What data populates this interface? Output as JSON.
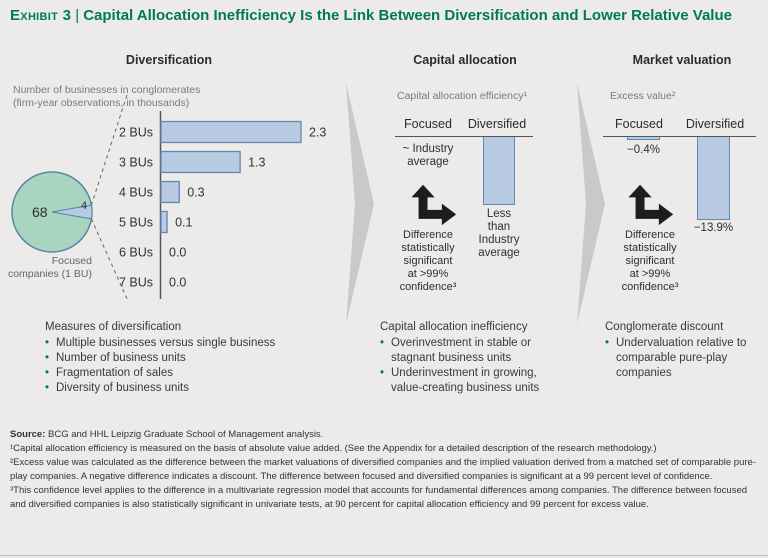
{
  "header": {
    "eyebrow": "Exhibit 3",
    "separator": "|",
    "title": "Capital Allocation Inefficiency Is the Link Between Diversification and Lower Relative Value"
  },
  "chart_data": [
    {
      "id": "diversification-bars",
      "type": "bar",
      "orientation": "horizontal",
      "title": "Diversification",
      "subtitle": "Number of businesses in conglomerates\n(firm-year observations, in thousands)",
      "categories": [
        "2 BUs",
        "3 BUs",
        "4 BUs",
        "5 BUs",
        "6 BUs",
        "7 BUs"
      ],
      "values": [
        2.3,
        1.3,
        0.3,
        0.1,
        0.0,
        0.0
      ],
      "xlim": [
        0,
        2.3
      ],
      "grid": false,
      "pie": {
        "values": [
          68,
          4
        ],
        "shown_numbers": [
          "68",
          "4"
        ],
        "caption": "Focused\ncompanies (1 BU)"
      }
    },
    {
      "id": "capital-allocation-efficiency",
      "type": "bar",
      "title": "Capital allocation",
      "subtitle": "Capital allocation efficiency¹",
      "categories": [
        "Focused",
        "Diversified"
      ],
      "values": [
        null,
        null
      ],
      "value_notes": [
        "~ Industry\naverage",
        "Less\nthan\nIndustry\naverage"
      ],
      "annotation": "Difference\nstatistically\nsignificant\nat >99%\nconfidence³"
    },
    {
      "id": "excess-value",
      "type": "bar",
      "title": "Market valuation",
      "subtitle": "Excess value²",
      "categories": [
        "Focused",
        "Diversified"
      ],
      "values": [
        -0.4,
        -13.9
      ],
      "unit": "%",
      "labels": [
        "−0.4%",
        "−13.9%"
      ],
      "annotation": "Difference\nstatistically\nsignificant\nat >99%\nconfidence³"
    }
  ],
  "lists": {
    "left": {
      "title": "Measures of diversification",
      "items": [
        "Multiple businesses versus single business",
        "Number of business units",
        "Fragmentation of sales",
        "Diversity of business units"
      ]
    },
    "middle": {
      "title": "Capital allocation inefficiency",
      "items": [
        "Overinvestment in stable or stagnant business units",
        "Underinvestment in growing, value-creating business units"
      ]
    },
    "right": {
      "title": "Conglomerate discount",
      "items": [
        "Undervaluation relative to comparable pure-play companies"
      ]
    }
  },
  "footnotes": {
    "source_label": "Source:",
    "source_text": " BCG and HHL Leipzig Graduate School of Management analysis.",
    "fn1": "¹Capital allocation efficiency is measured on the basis of absolute value added. (See the Appendix for a detailed description of the research methodology.)",
    "fn2": "²Excess value was calculated as the difference between the market valuations of diversified companies and the implied valuation derived from a matched set of comparable pure-play companies. A negative difference indicates a discount. The difference between focused and diversified companies is significant at a 99 percent level of confidence.",
    "fn3": "³This confidence level applies to the difference in a multivariate regression model that accounts for fundamental differences among companies. The difference between focused and diversified companies is also statistically significant in univariate tests, at 90 percent for capital allocation efficiency and 99 percent for excess value."
  },
  "colors": {
    "accent_green": "#00795b",
    "bar_fill": "#b9cbe2",
    "bar_stroke": "#6388b0",
    "pie_green": "#a9d4c0",
    "flow_arrow_gray": "#c9c9c8",
    "background": "#ecebe9"
  }
}
